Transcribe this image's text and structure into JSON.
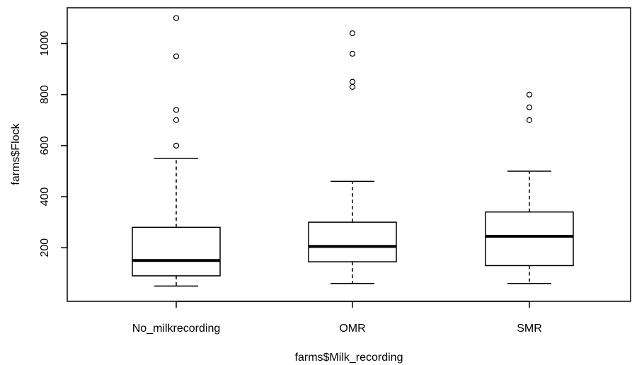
{
  "chart_data": {
    "type": "boxplot",
    "title": "",
    "xlabel": "farms$Milk_recording",
    "ylabel": "farms$Flock",
    "ylim": [
      -10,
      1140
    ],
    "yticks": [
      200,
      400,
      600,
      800,
      1000
    ],
    "categories": [
      "No_milkrecording",
      "OMR",
      "SMR"
    ],
    "boxes": [
      {
        "name": "No_milkrecording",
        "whisker_low": 50,
        "q1": 90,
        "median": 150,
        "q3": 280,
        "whisker_high": 550,
        "outliers": [
          600,
          700,
          740,
          950,
          1100
        ]
      },
      {
        "name": "OMR",
        "whisker_low": 60,
        "q1": 145,
        "median": 205,
        "q3": 300,
        "whisker_high": 460,
        "outliers": [
          830,
          850,
          960,
          1040
        ]
      },
      {
        "name": "SMR",
        "whisker_low": 60,
        "q1": 130,
        "median": 245,
        "q3": 340,
        "whisker_high": 500,
        "outliers": [
          700,
          750,
          800
        ]
      }
    ],
    "grid": false,
    "legend": "none"
  }
}
